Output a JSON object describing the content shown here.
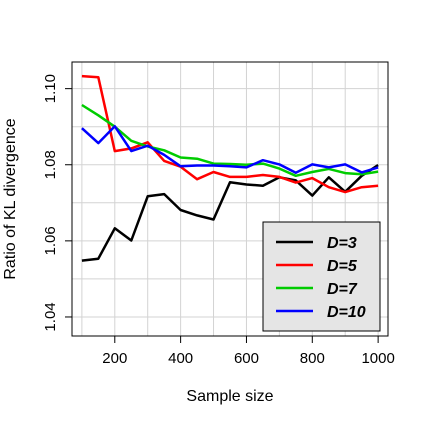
{
  "chart_data": {
    "type": "line",
    "xlabel": "Sample size",
    "ylabel": "Ratio of KL divergence",
    "xlim": [
      70,
      1030
    ],
    "ylim": [
      1.035,
      1.107
    ],
    "xticks": [
      200,
      400,
      600,
      800,
      1000
    ],
    "xtick_labels": [
      "200",
      "400",
      "600",
      "800",
      "1000"
    ],
    "yticks": [
      1.04,
      1.06,
      1.08,
      1.1
    ],
    "ytick_labels": [
      "1.04",
      "1.06",
      "1.08",
      "1.10"
    ],
    "grid": true,
    "legend_position": "bottom-right",
    "x": [
      100,
      150,
      200,
      250,
      300,
      350,
      400,
      450,
      500,
      550,
      600,
      650,
      700,
      750,
      800,
      850,
      900,
      950,
      1000
    ],
    "series": [
      {
        "name": "D=3",
        "color": "#000000",
        "values": [
          1.0548,
          1.0553,
          1.0633,
          1.0601,
          1.0717,
          1.0723,
          1.0681,
          1.0667,
          1.0656,
          1.0754,
          1.0748,
          1.0745,
          1.0767,
          1.0759,
          1.0719,
          1.0767,
          1.0729,
          1.0771,
          1.0799
        ]
      },
      {
        "name": "D=5",
        "color": "#ff0000",
        "values": [
          1.1033,
          1.103,
          1.0836,
          1.0843,
          1.0859,
          1.081,
          1.0795,
          1.0762,
          1.0781,
          1.0768,
          1.0768,
          1.0773,
          1.0768,
          1.0753,
          1.0765,
          1.0741,
          1.0728,
          1.0741,
          1.0745
        ]
      },
      {
        "name": "D=7",
        "color": "#00cc00",
        "values": [
          1.0957,
          1.093,
          1.09,
          1.0863,
          1.0848,
          1.0838,
          1.0819,
          1.0816,
          1.0803,
          1.0802,
          1.08,
          1.0803,
          1.079,
          1.0771,
          1.0781,
          1.0789,
          1.0778,
          1.0775,
          1.0782
        ]
      },
      {
        "name": "D=10",
        "color": "#0000ff",
        "values": [
          1.0896,
          1.0857,
          1.0901,
          1.0836,
          1.085,
          1.0826,
          1.0796,
          1.0798,
          1.0798,
          1.0796,
          1.0793,
          1.0812,
          1.0801,
          1.0779,
          1.0801,
          1.0793,
          1.0801,
          1.078,
          1.0793
        ]
      }
    ]
  }
}
